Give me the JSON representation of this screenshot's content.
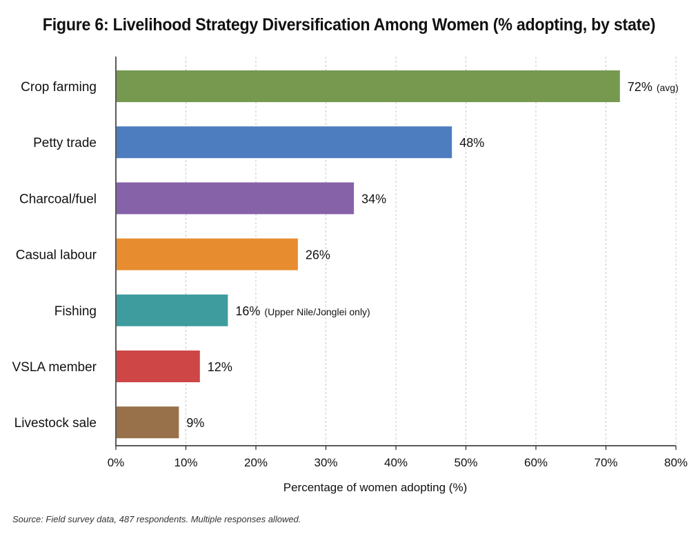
{
  "chart_data": {
    "type": "bar",
    "orientation": "horizontal",
    "title": "Figure 6: Livelihood Strategy Diversification Among Women (% adopting, by state)",
    "xlabel": "Percentage of women adopting (%)",
    "ylabel": "",
    "xlim": [
      0,
      80
    ],
    "xticks": [
      0,
      10,
      20,
      30,
      40,
      50,
      60,
      70,
      80
    ],
    "xtick_labels": [
      "0%",
      "10%",
      "20%",
      "30%",
      "40%",
      "50%",
      "60%",
      "70%",
      "80%"
    ],
    "grid": "vertical dotted",
    "legend": "none",
    "categories": [
      "Crop farming",
      "Petty trade",
      "Charcoal/fuel",
      "Casual labour",
      "Fishing",
      "VSLA member",
      "Livestock sale"
    ],
    "values": [
      72,
      48,
      34,
      26,
      16,
      12,
      9
    ],
    "value_labels": [
      "72%",
      "48%",
      "34%",
      "26%",
      "16%",
      "12%",
      "9%"
    ],
    "value_notes": [
      "(avg)",
      "",
      "",
      "",
      "(Upper Nile/Jonglei only)",
      "",
      ""
    ],
    "colors": [
      "#76994f",
      "#4d7dbf",
      "#8662a8",
      "#e78d30",
      "#3e9c9e",
      "#ce4646",
      "#98704a"
    ],
    "source": "Source: Field survey data, 487 respondents. Multiple responses allowed."
  }
}
